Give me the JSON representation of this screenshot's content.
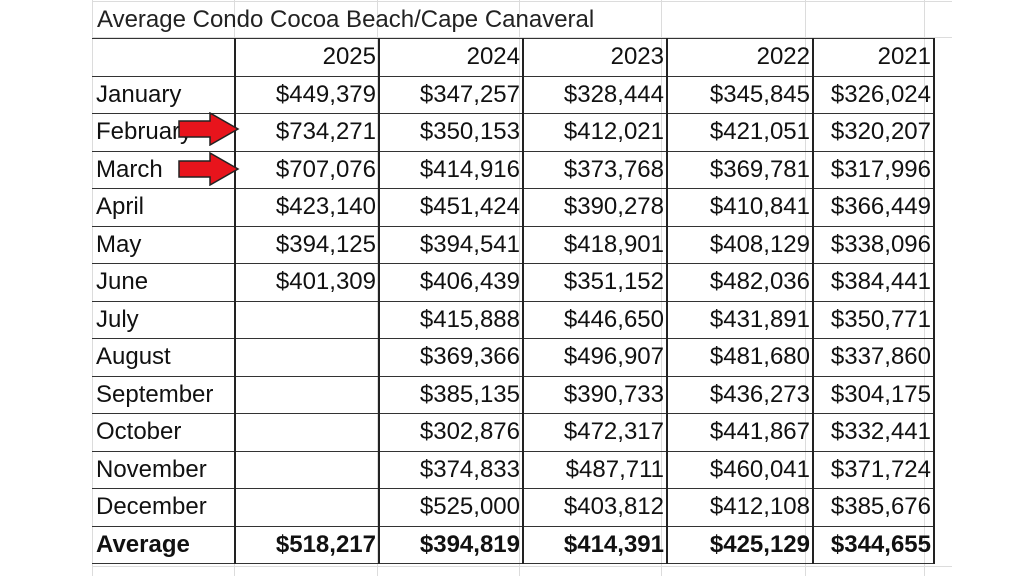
{
  "sheet": {
    "title": "Average Condo Cocoa Beach/Cape Canaveral",
    "columns": [
      "",
      "2025",
      "2024",
      "2023",
      "2022",
      "2021"
    ],
    "rows": [
      {
        "label": "January",
        "values": [
          "$449,379",
          "$347,257",
          "$328,444",
          "$345,845",
          "$326,024"
        ]
      },
      {
        "label": "February",
        "values": [
          "$734,271",
          "$350,153",
          "$412,021",
          "$421,051",
          "$320,207"
        ]
      },
      {
        "label": "March",
        "values": [
          "$707,076",
          "$414,916",
          "$373,768",
          "$369,781",
          "$317,996"
        ]
      },
      {
        "label": "April",
        "values": [
          "$423,140",
          "$451,424",
          "$390,278",
          "$410,841",
          "$366,449"
        ]
      },
      {
        "label": "May",
        "values": [
          "$394,125",
          "$394,541",
          "$418,901",
          "$408,129",
          "$338,096"
        ]
      },
      {
        "label": "June",
        "values": [
          "$401,309",
          "$406,439",
          "$351,152",
          "$482,036",
          "$384,441"
        ]
      },
      {
        "label": "July",
        "values": [
          "",
          "$415,888",
          "$446,650",
          "$431,891",
          "$350,771"
        ]
      },
      {
        "label": "August",
        "values": [
          "",
          "$369,366",
          "$496,907",
          "$481,680",
          "$337,860"
        ]
      },
      {
        "label": "September",
        "values": [
          "",
          "$385,135",
          "$390,733",
          "$436,273",
          "$304,175"
        ]
      },
      {
        "label": "October",
        "values": [
          "",
          "$302,876",
          "$472,317",
          "$441,867",
          "$332,441"
        ]
      },
      {
        "label": "November",
        "values": [
          "",
          "$374,833",
          "$487,711",
          "$460,041",
          "$371,724"
        ]
      },
      {
        "label": "December",
        "values": [
          "",
          "$525,000",
          "$403,812",
          "$412,108",
          "$385,676"
        ]
      }
    ],
    "average": {
      "label": "Average",
      "values": [
        "$518,217",
        "$394,819",
        "$414,391",
        "$425,129",
        "$344,655"
      ]
    }
  },
  "annotations": {
    "arrows": [
      {
        "points_to": "February 2025",
        "color": "#e8141c"
      },
      {
        "points_to": "March 2025",
        "color": "#e8141c"
      }
    ]
  }
}
